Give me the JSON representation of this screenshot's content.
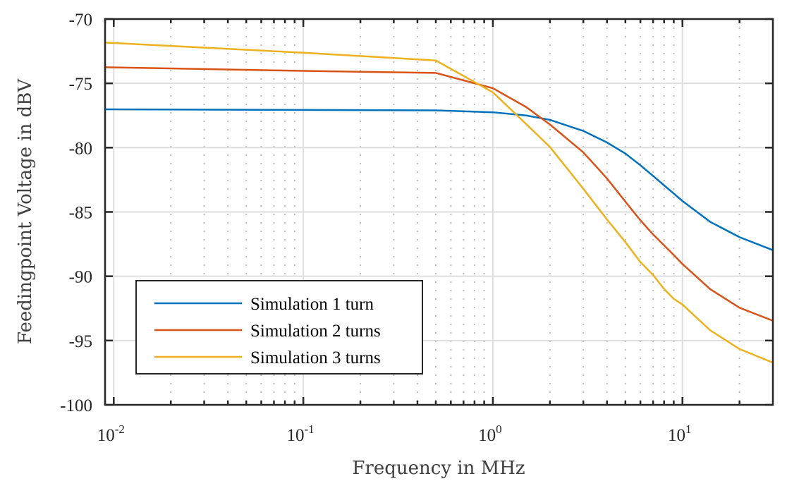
{
  "chart_data": {
    "type": "line",
    "title": "",
    "xlabel": "Frequency in MHz",
    "ylabel": "Feedingpoint Voltage in dBV",
    "xscale": "log",
    "xlim": [
      0.009,
      30
    ],
    "ylim": [
      -100,
      -70
    ],
    "grid": true,
    "minor_grid": true,
    "legend_position": "bottom-left",
    "x_ticks": [
      {
        "value": 0.01,
        "base": "10",
        "exp": "-2"
      },
      {
        "value": 0.1,
        "base": "10",
        "exp": "-1"
      },
      {
        "value": 1,
        "base": "10",
        "exp": "0"
      },
      {
        "value": 10,
        "base": "10",
        "exp": "1"
      }
    ],
    "y_ticks": [
      {
        "value": -70,
        "label": "-70"
      },
      {
        "value": -75,
        "label": "-75"
      },
      {
        "value": -80,
        "label": "-80"
      },
      {
        "value": -85,
        "label": "-85"
      },
      {
        "value": -90,
        "label": "-90"
      },
      {
        "value": -95,
        "label": "-95"
      },
      {
        "value": -100,
        "label": "-100"
      }
    ],
    "series": [
      {
        "name": "Simulation 1 turn",
        "color": "#0072bd",
        "x": [
          0.009,
          0.1,
          0.5,
          1,
          1.5,
          2,
          3,
          4,
          5,
          6,
          7,
          8,
          9,
          10,
          14,
          20,
          30
        ],
        "y": [
          -77.02,
          -77.07,
          -77.1,
          -77.25,
          -77.5,
          -77.84,
          -78.7,
          -79.6,
          -80.46,
          -81.37,
          -82.2,
          -82.93,
          -83.57,
          -84.15,
          -85.77,
          -86.96,
          -87.97
        ]
      },
      {
        "name": "Simulation 2 turns",
        "color": "#d95319",
        "x": [
          0.009,
          0.1,
          0.5,
          1,
          1.5,
          2,
          3,
          4,
          5,
          6,
          7,
          8,
          9,
          10,
          14,
          20,
          30
        ],
        "y": [
          -73.75,
          -74.03,
          -74.19,
          -75.38,
          -76.85,
          -78.2,
          -80.37,
          -82.4,
          -84.2,
          -85.65,
          -86.75,
          -87.6,
          -88.35,
          -89.05,
          -91.0,
          -92.45,
          -93.46
        ]
      },
      {
        "name": "Simulation 3 turns",
        "color": "#edb120",
        "x": [
          0.009,
          0.1,
          0.5,
          1,
          1.5,
          2,
          3,
          4,
          5,
          6,
          7,
          8,
          9,
          10,
          14,
          20,
          30
        ],
        "y": [
          -71.83,
          -72.62,
          -73.22,
          -75.7,
          -78.17,
          -79.95,
          -83.2,
          -85.59,
          -87.35,
          -88.9,
          -89.9,
          -90.99,
          -91.76,
          -92.2,
          -94.2,
          -95.66,
          -96.72
        ]
      }
    ]
  }
}
